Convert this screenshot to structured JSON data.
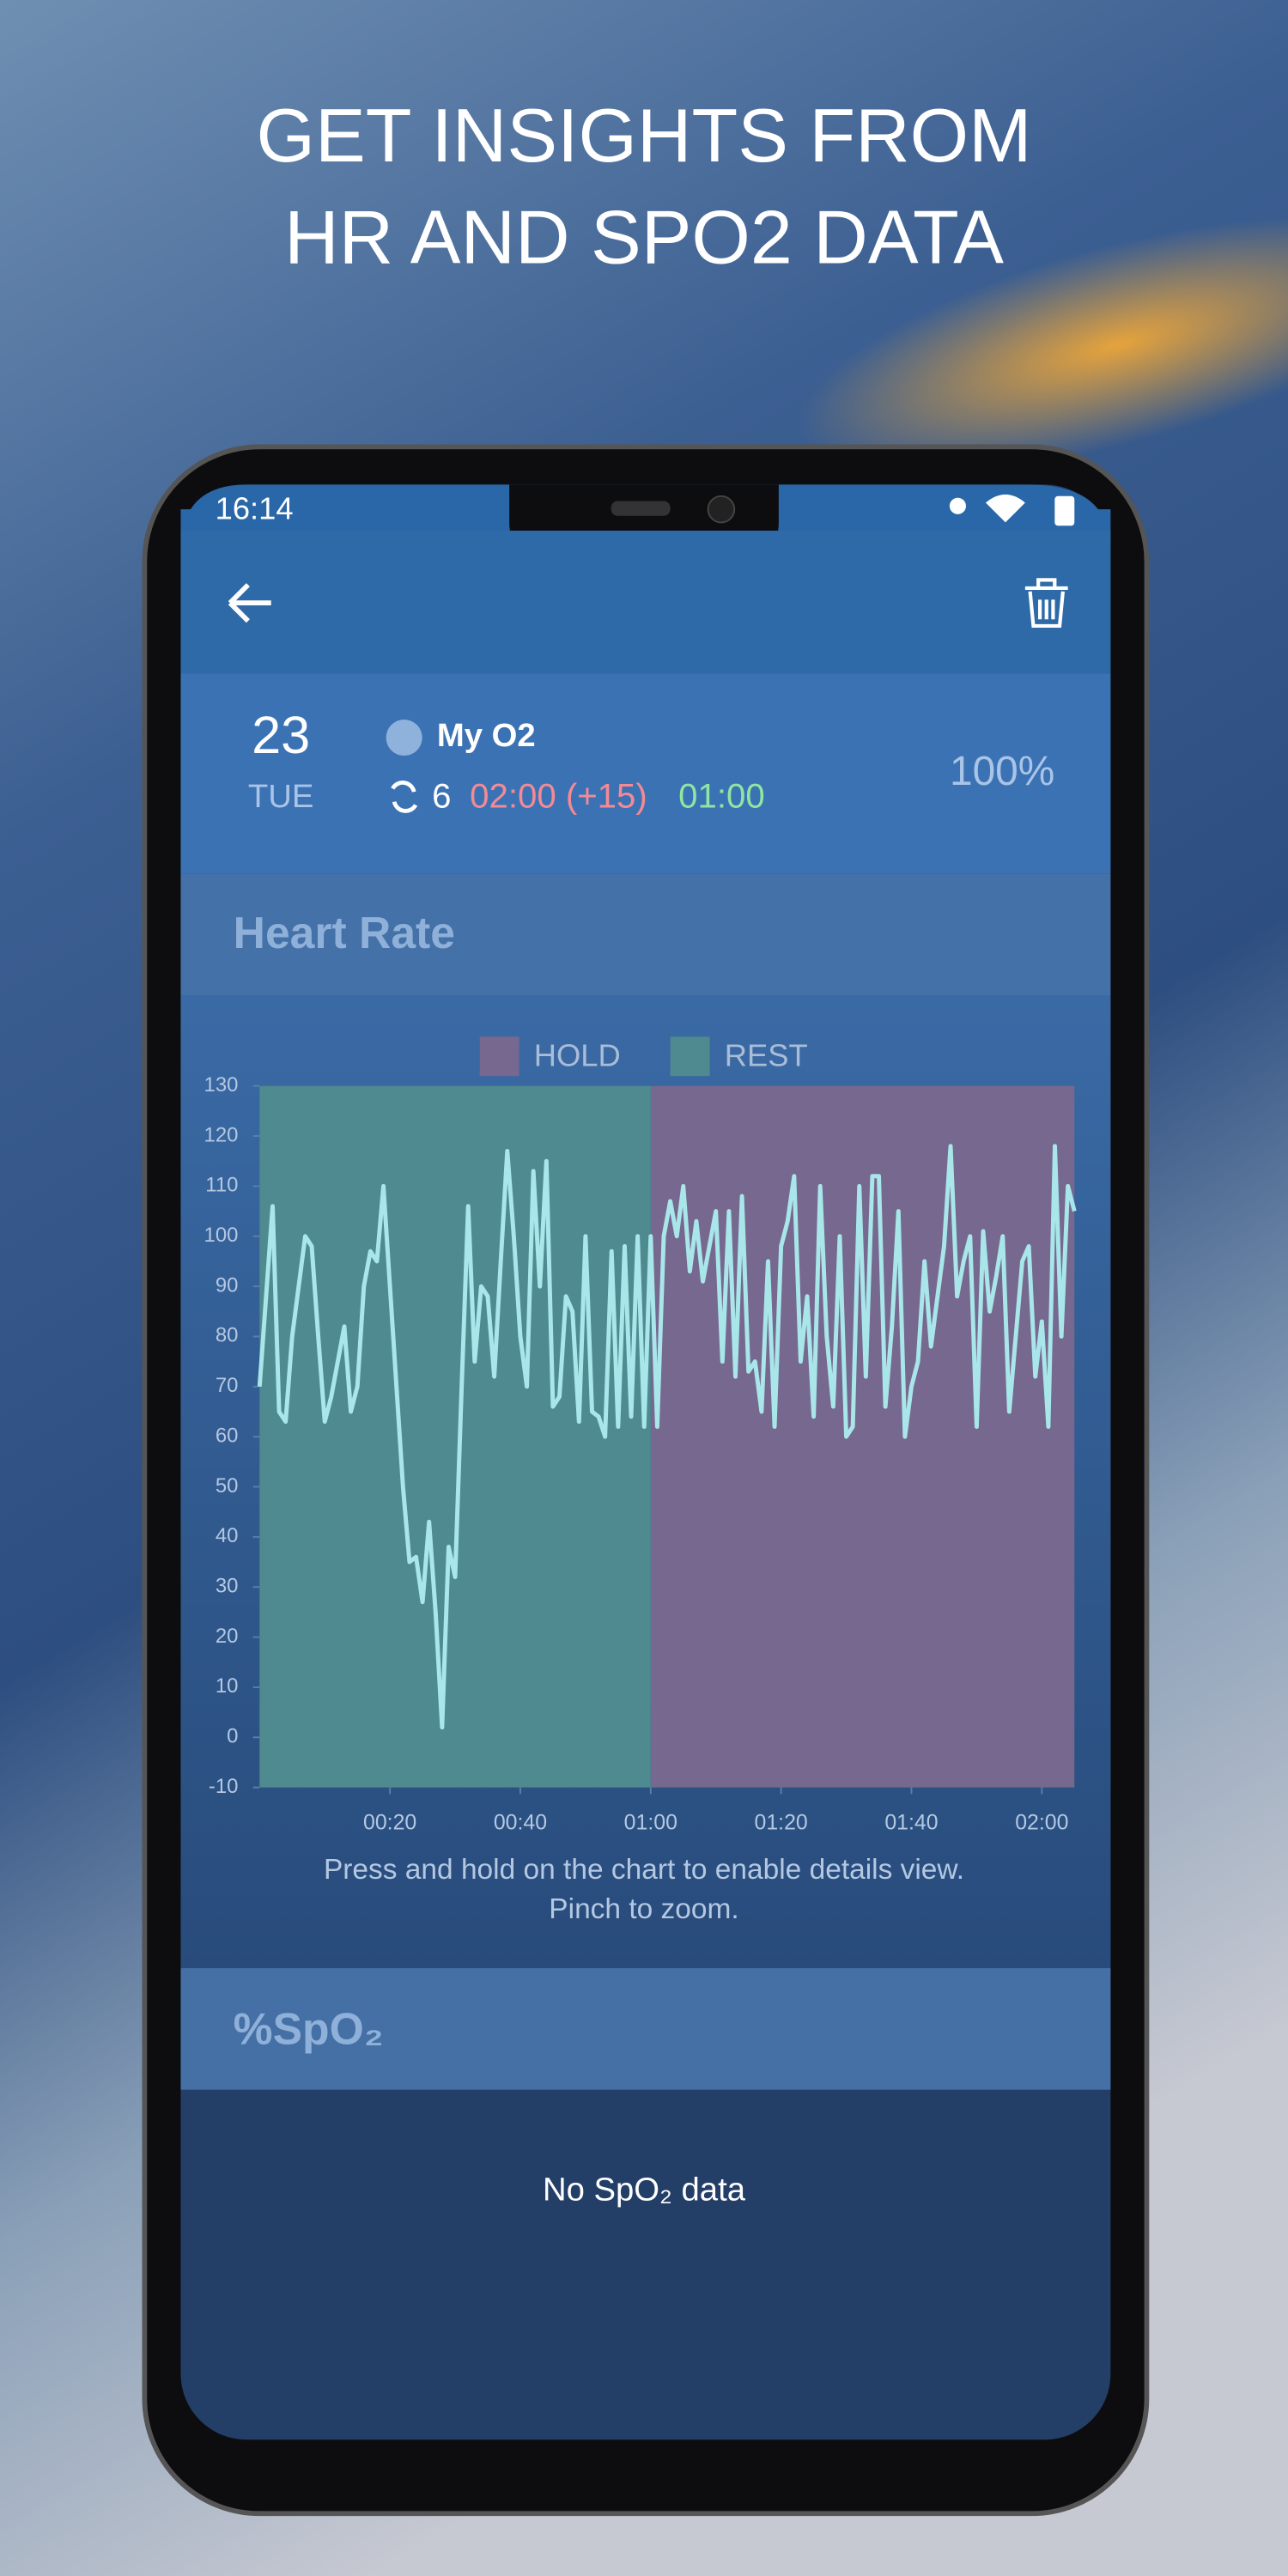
{
  "headline": [
    "GET INSIGHTS FROM",
    "HR AND SPO2 DATA"
  ],
  "status_bar": {
    "time": "16:14"
  },
  "session": {
    "day": "23",
    "weekday": "TUE",
    "name": "My O2",
    "rounds": "6",
    "hold": "02:00 (+15)",
    "rest": "01:00",
    "percent": "100%"
  },
  "heart_rate": {
    "title": "Heart Rate",
    "hint": [
      "Press and hold on the chart to enable details view.",
      "Pinch to zoom."
    ]
  },
  "spo2": {
    "title": "%SpO₂",
    "empty": "No SpO₂ data"
  },
  "chart_data": {
    "type": "line",
    "bands": [
      {
        "name": "HOLD",
        "start": 60,
        "end": 125,
        "color": "#76688e"
      },
      {
        "name": "REST",
        "start": 0,
        "end": 60,
        "color": "#4e8a8f"
      }
    ],
    "x": [
      0,
      1,
      2,
      3,
      4,
      5,
      6,
      7,
      8,
      9,
      10,
      11,
      12,
      13,
      14,
      15,
      16,
      17,
      18,
      19,
      20,
      21,
      22,
      23,
      24,
      25,
      26,
      27,
      28,
      29,
      30,
      31,
      32,
      33,
      34,
      35,
      36,
      37,
      38,
      39,
      40,
      41,
      42,
      43,
      44,
      45,
      46,
      47,
      48,
      49,
      50,
      51,
      52,
      53,
      54,
      55,
      56,
      57,
      58,
      59,
      60,
      61,
      62,
      63,
      64,
      65,
      66,
      67,
      68,
      69,
      70,
      71,
      72,
      73,
      74,
      75,
      76,
      77,
      78,
      79,
      80,
      81,
      82,
      83,
      84,
      85,
      86,
      87,
      88,
      89,
      90,
      91,
      92,
      93,
      94,
      95,
      96,
      97,
      98,
      99,
      100,
      101,
      102,
      103,
      104,
      105,
      106,
      107,
      108,
      109,
      110,
      111,
      112,
      113,
      114,
      115,
      116,
      117,
      118,
      119,
      120,
      121,
      122,
      123,
      124,
      125
    ],
    "series": [
      {
        "color": "#a8e6ea",
        "values": [
          70,
          88,
          106,
          65,
          63,
          80,
          90,
          100,
          98,
          80,
          63,
          68,
          75,
          82,
          65,
          70,
          90,
          97,
          95,
          110,
          90,
          70,
          50,
          35,
          36,
          27,
          43,
          25,
          2,
          38,
          32,
          70,
          106,
          75,
          90,
          88,
          72,
          95,
          117,
          100,
          80,
          70,
          113,
          90,
          115,
          66,
          68,
          88,
          85,
          63,
          100,
          65,
          64,
          60,
          97,
          62,
          98,
          64,
          100,
          62,
          100,
          62,
          100,
          107,
          100,
          110,
          93,
          103,
          91,
          98,
          105,
          75,
          105,
          72,
          108,
          73,
          75,
          65,
          95,
          62,
          98,
          103,
          112,
          75,
          88,
          64,
          110,
          80,
          66,
          100,
          60,
          62,
          110,
          72,
          112,
          112,
          66,
          82,
          105,
          60,
          70,
          75,
          95,
          78,
          88,
          98,
          118,
          88,
          95,
          100,
          62,
          101,
          85,
          92,
          100,
          65,
          80,
          95,
          98,
          72,
          83,
          62,
          118,
          80,
          110,
          105
        ]
      }
    ],
    "xlim": [
      0,
      125
    ],
    "xticks": [
      {
        "value": 20,
        "label": "00:20"
      },
      {
        "value": 40,
        "label": "00:40"
      },
      {
        "value": 60,
        "label": "01:00"
      },
      {
        "value": 80,
        "label": "01:20"
      },
      {
        "value": 100,
        "label": "01:40"
      },
      {
        "value": 120,
        "label": "02:00"
      }
    ],
    "ylim": [
      -10,
      130
    ],
    "yticks": [
      -10,
      0,
      10,
      20,
      30,
      40,
      50,
      60,
      70,
      80,
      90,
      100,
      110,
      120,
      130
    ]
  }
}
